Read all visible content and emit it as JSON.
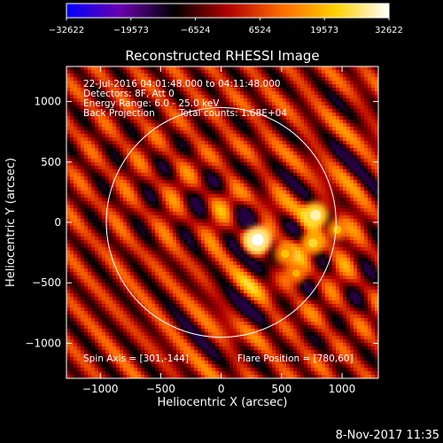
{
  "chart_data": {
    "type": "heatmap",
    "title": "Reconstructed RHESSI Image",
    "xlabel": "Heliocentric X (arcsec)",
    "ylabel": "Heliocentric Y (arcsec)",
    "xlim": [
      -1280,
      1300
    ],
    "ylim": [
      -1290,
      1290
    ],
    "xticks": [
      -1000,
      -500,
      0,
      500,
      1000
    ],
    "xtick_labels": [
      "−1000",
      "−500",
      "0",
      "500",
      "1000"
    ],
    "yticks": [
      -1000,
      -500,
      0,
      500,
      1000
    ],
    "ytick_labels": [
      "−1000",
      "−500",
      "0",
      "500",
      "1000"
    ],
    "colorbar": {
      "min": -32622,
      "max": 32622,
      "ticks": [
        -32622,
        -19573,
        -6524,
        6524,
        19573,
        32622
      ],
      "tick_labels": [
        "−32622",
        "−19573",
        "−6524",
        "6524",
        "19573",
        "32622"
      ]
    },
    "annotations": [
      "22-Jul-2016 04:01:48.000 to 04:11:48.000",
      "Detectors: 8F, Att 0",
      "Energy Range: 6.0 - 25.0 keV",
      "Back Projection",
      "Total counts: 1.68E+04"
    ],
    "spin_axis_label": "Spin Axis = [301,-144]",
    "flare_position_label": "Flare Position = [780,60]",
    "solar_limb": {
      "center": [
        0,
        0
      ],
      "radius": 950
    },
    "crosshair": [
      301,
      -144
    ],
    "sources": [
      {
        "x": 301,
        "y": -144,
        "intensity": 32622
      },
      {
        "x": 780,
        "y": 60,
        "intensity": 28000
      },
      {
        "x": 760,
        "y": -170,
        "intensity": 21000
      },
      {
        "x": 530,
        "y": -260,
        "intensity": 17000
      },
      {
        "x": 960,
        "y": -60,
        "intensity": 16000
      },
      {
        "x": 620,
        "y": -420,
        "intensity": 14000
      }
    ],
    "colormap": [
      "#0000ff",
      "#6a00b0",
      "#000000",
      "#b00000",
      "#ff6a00",
      "#ffd000",
      "#ffffff"
    ]
  },
  "footer_timestamp": "8-Nov-2017 11:35"
}
